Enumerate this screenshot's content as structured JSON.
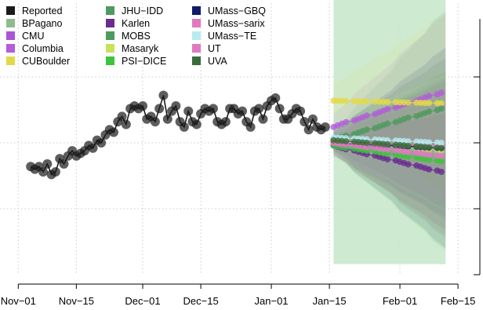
{
  "chart_data": {
    "type": "line",
    "title": "",
    "xlabel": "",
    "ylabel": "",
    "x_ticks": [
      "Nov−01",
      "Nov−15",
      "Dec−01",
      "Dec−15",
      "Jan−01",
      "Jan−15",
      "Feb−01",
      "Feb−15"
    ],
    "x_tick_dates": [
      "2020-11-01",
      "2020-11-15",
      "2020-12-01",
      "2020-12-15",
      "2021-01-01",
      "2021-01-15",
      "2021-02-01",
      "2021-02-15"
    ],
    "xlim": [
      "2020-10-31",
      "2021-02-18"
    ],
    "ylim": [
      0,
      100
    ],
    "y_tick_values": [
      25,
      50,
      75
    ],
    "grid": true,
    "legend_position": "top-left",
    "forecast_window": [
      "2021-01-16",
      "2021-02-12"
    ],
    "reported": {
      "name": "Reported",
      "color": "#1a1a1a",
      "dates": [
        "2020-11-04",
        "2020-11-05",
        "2020-11-06",
        "2020-11-07",
        "2020-11-08",
        "2020-11-09",
        "2020-11-10",
        "2020-11-11",
        "2020-11-12",
        "2020-11-13",
        "2020-11-14",
        "2020-11-15",
        "2020-11-16",
        "2020-11-17",
        "2020-11-18",
        "2020-11-19",
        "2020-11-20",
        "2020-11-21",
        "2020-11-22",
        "2020-11-23",
        "2020-11-24",
        "2020-11-25",
        "2020-11-26",
        "2020-11-27",
        "2020-11-28",
        "2020-11-29",
        "2020-11-30",
        "2020-12-01",
        "2020-12-02",
        "2020-12-03",
        "2020-12-04",
        "2020-12-05",
        "2020-12-06",
        "2020-12-07",
        "2020-12-08",
        "2020-12-09",
        "2020-12-10",
        "2020-12-11",
        "2020-12-12",
        "2020-12-13",
        "2020-12-14",
        "2020-12-15",
        "2020-12-16",
        "2020-12-17",
        "2020-12-18",
        "2020-12-19",
        "2020-12-20",
        "2020-12-21",
        "2020-12-22",
        "2020-12-23",
        "2020-12-24",
        "2020-12-25",
        "2020-12-26",
        "2020-12-27",
        "2020-12-28",
        "2020-12-29",
        "2020-12-30",
        "2020-12-31",
        "2021-01-01",
        "2021-01-02",
        "2021-01-03",
        "2021-01-04",
        "2021-01-05",
        "2021-01-06",
        "2021-01-07",
        "2021-01-08",
        "2021-01-09",
        "2021-01-10",
        "2021-01-11",
        "2021-01-12",
        "2021-01-13",
        "2021-01-14"
      ],
      "values": [
        41,
        40,
        41,
        39,
        42,
        38,
        39,
        44,
        42,
        45,
        47,
        45,
        46,
        47,
        49,
        48,
        51,
        50,
        53,
        55,
        54,
        58,
        60,
        57,
        63,
        64,
        63,
        64,
        59,
        60,
        58,
        63,
        68,
        59,
        62,
        64,
        58,
        56,
        62,
        58,
        57,
        61,
        63,
        62,
        63,
        58,
        57,
        58,
        63,
        63,
        61,
        62,
        58,
        56,
        62,
        63,
        59,
        64,
        66,
        67,
        63,
        59,
        59,
        61,
        63,
        62,
        58,
        55,
        59,
        56,
        55,
        56
      ]
    },
    "series": [
      {
        "name": "BPagano",
        "color": "#8fbc8f",
        "start": 51,
        "end": 46
      },
      {
        "name": "CMU",
        "color": "#a855d6",
        "start": 51,
        "end": 47
      },
      {
        "name": "Columbia",
        "color": "#b25ed8",
        "start": 56,
        "end": 69
      },
      {
        "name": "CUBoulder",
        "color": "#e2d94a",
        "start": 66,
        "end": 65
      },
      {
        "name": "JHU−IDD",
        "color": "#4f9a5f",
        "start": 51,
        "end": 63
      },
      {
        "name": "Karlen",
        "color": "#6a2c91",
        "start": 49,
        "end": 39
      },
      {
        "name": "MOBS",
        "color": "#4f9a5f",
        "start": 50,
        "end": 48
      },
      {
        "name": "Masaryk",
        "color": "#c7e35a",
        "start": 51,
        "end": 47
      },
      {
        "name": "PSI−DICE",
        "color": "#3cc43c",
        "start": 49,
        "end": 43
      },
      {
        "name": "UMass−GBQ",
        "color": "#0f1b6b",
        "start": 50,
        "end": 48
      },
      {
        "name": "UMass−sarix",
        "color": "#e07ac0",
        "start": 50,
        "end": 49
      },
      {
        "name": "UMass−TE",
        "color": "#b8eaf0",
        "start": 52,
        "end": 50
      },
      {
        "name": "UT",
        "color": "#e07ac0",
        "start": 50,
        "end": 45
      },
      {
        "name": "UVA",
        "color": "#3a6b3a",
        "start": 51,
        "end": 48
      }
    ],
    "legend_columns": [
      [
        "Reported",
        "BPagano",
        "CMU",
        "Columbia",
        "CUBoulder"
      ],
      [
        "JHU−IDD",
        "Karlen",
        "MOBS",
        "Masaryk",
        "PSI−DICE"
      ],
      [
        "UMass−GBQ",
        "UMass−sarix",
        "UMass−TE",
        "UT",
        "UVA"
      ]
    ]
  }
}
